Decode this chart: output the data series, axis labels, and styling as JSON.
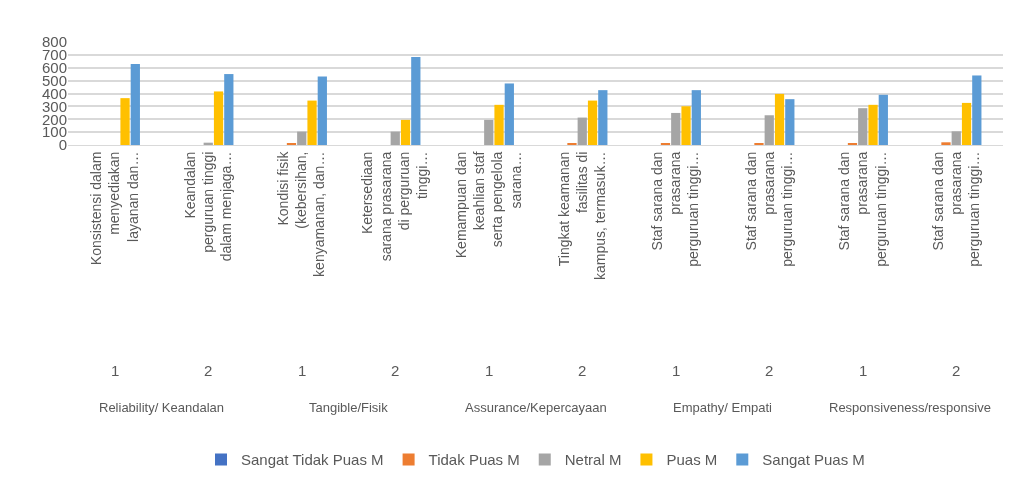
{
  "chart_data": {
    "type": "bar",
    "categories": [
      "Konsistensi dalam menyediakan layanan dan…",
      "Keandalan perguruan tinggi dalam menjaga…",
      "Kondisi fisik (kebersihan, kenyamanan, dan…",
      "Ketersediaan sarana prasarana di perguruan tinggi…",
      "Kemampuan dan keahlian staf serta pengelola sarana…",
      "Tingkat keamanan fasilitas di kampus, termasuk…",
      "Staf sarana dan prasarana perguruan tinggi…",
      "Staf sarana dan prasarana perguruan tinggi…",
      "Staf sarana dan prasarana perguruan tinggi…",
      "Staf sarana dan prasarana perguruan tinggi…"
    ],
    "series": [
      {
        "name": "Sangat Tidak Puas M",
        "color": "#4472c4",
        "values": [
          0,
          0,
          0,
          0,
          0,
          0,
          0,
          0,
          0,
          0
        ]
      },
      {
        "name": "Tidak Puas M",
        "color": "#ed7d31",
        "values": [
          0,
          0,
          10,
          0,
          0,
          10,
          10,
          10,
          10,
          21
        ]
      },
      {
        "name": "Netral M",
        "color": "#a5a5a5",
        "values": [
          0,
          18,
          104,
          104,
          195,
          213,
          249,
          231,
          286,
          106
        ]
      },
      {
        "name": "Puas M",
        "color": "#ffc000",
        "values": [
          364,
          416,
          345,
          195,
          312,
          345,
          301,
          397,
          312,
          327
        ]
      },
      {
        "name": "Sangat Puas M",
        "color": "#5b9bd5",
        "values": [
          629,
          551,
          532,
          683,
          478,
          426,
          426,
          356,
          390,
          540
        ]
      }
    ],
    "ylim": [
      0,
      800
    ],
    "yticks": [
      0,
      100,
      200,
      300,
      400,
      500,
      600,
      700,
      800
    ],
    "grid": "y",
    "legend": "bottom",
    "annotations": [
      "1",
      "2",
      "1",
      "2",
      "1",
      "2",
      "1",
      "2",
      "1",
      "2",
      "Reliability/ Keandalan",
      "Tangible/Fisik",
      "Assurance/Kepercayaan",
      "Empathy/ Empati",
      "Responsiveness/responsive"
    ]
  }
}
